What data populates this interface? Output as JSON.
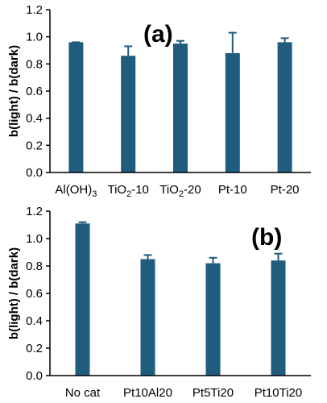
{
  "chart_data": [
    {
      "type": "bar",
      "panel_label": "(a)",
      "ylabel": "b(light) / b(dark)",
      "ylim": [
        0,
        1.2
      ],
      "yticks": [
        "0.0",
        "0.2",
        "0.4",
        "0.6",
        "0.8",
        "1.0",
        "1.2"
      ],
      "categories": [
        {
          "main": "Al(OH)",
          "sub": "3",
          "tail": ""
        },
        {
          "main": "TiO",
          "sub": "2",
          "tail": "-10"
        },
        {
          "main": "TiO",
          "sub": "2",
          "tail": "-20"
        },
        {
          "main": "Pt-10",
          "sub": "",
          "tail": ""
        },
        {
          "main": "Pt-20",
          "sub": "",
          "tail": ""
        }
      ],
      "values": [
        0.96,
        0.86,
        0.95,
        0.88,
        0.96
      ],
      "errors": [
        0.0,
        0.07,
        0.02,
        0.15,
        0.03
      ],
      "bar_color": "#1f5c7e",
      "grid": false
    },
    {
      "type": "bar",
      "panel_label": "(b)",
      "ylabel": "b(light) / b(dark)",
      "ylim": [
        0,
        1.2
      ],
      "yticks": [
        "0.0",
        "0.2",
        "0.4",
        "0.6",
        "0.8",
        "1.0",
        "1.2"
      ],
      "categories": [
        {
          "main": "No cat",
          "sub": "",
          "tail": ""
        },
        {
          "main": "Pt10Al20",
          "sub": "",
          "tail": ""
        },
        {
          "main": "Pt5Ti20",
          "sub": "",
          "tail": ""
        },
        {
          "main": "Pt10Ti20",
          "sub": "",
          "tail": ""
        }
      ],
      "values": [
        1.11,
        0.85,
        0.82,
        0.84
      ],
      "errors": [
        0.01,
        0.03,
        0.04,
        0.05
      ],
      "bar_color": "#1f5c7e",
      "grid": false
    }
  ]
}
